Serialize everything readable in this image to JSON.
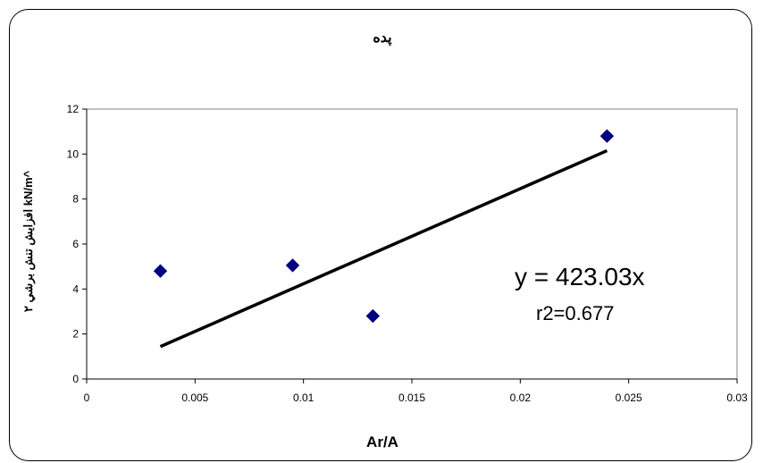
{
  "chart_data": {
    "type": "scatter",
    "title": "پده",
    "xlabel": "Ar/A",
    "ylabel": "افزايش تنش برشي ۲ kN/m^",
    "xlim": [
      0,
      0.03
    ],
    "ylim": [
      0,
      12
    ],
    "x_ticks": [
      "0",
      "0.005",
      "0.01",
      "0.015",
      "0.02",
      "0.025",
      "0.03"
    ],
    "y_ticks": [
      "0",
      "2",
      "4",
      "6",
      "8",
      "10",
      "12"
    ],
    "points": [
      {
        "x": 0.0034,
        "y": 4.8
      },
      {
        "x": 0.0095,
        "y": 5.05
      },
      {
        "x": 0.0132,
        "y": 2.8
      },
      {
        "x": 0.024,
        "y": 10.8
      }
    ],
    "trendline": {
      "type": "linear",
      "x": [
        0.0034,
        0.024
      ],
      "y": [
        1.44,
        10.15
      ]
    },
    "equation_text": "y = 423.03x",
    "r2_text": "r2=0.677",
    "grid": false,
    "marker_color": "#000080",
    "line_color": "#000000"
  }
}
